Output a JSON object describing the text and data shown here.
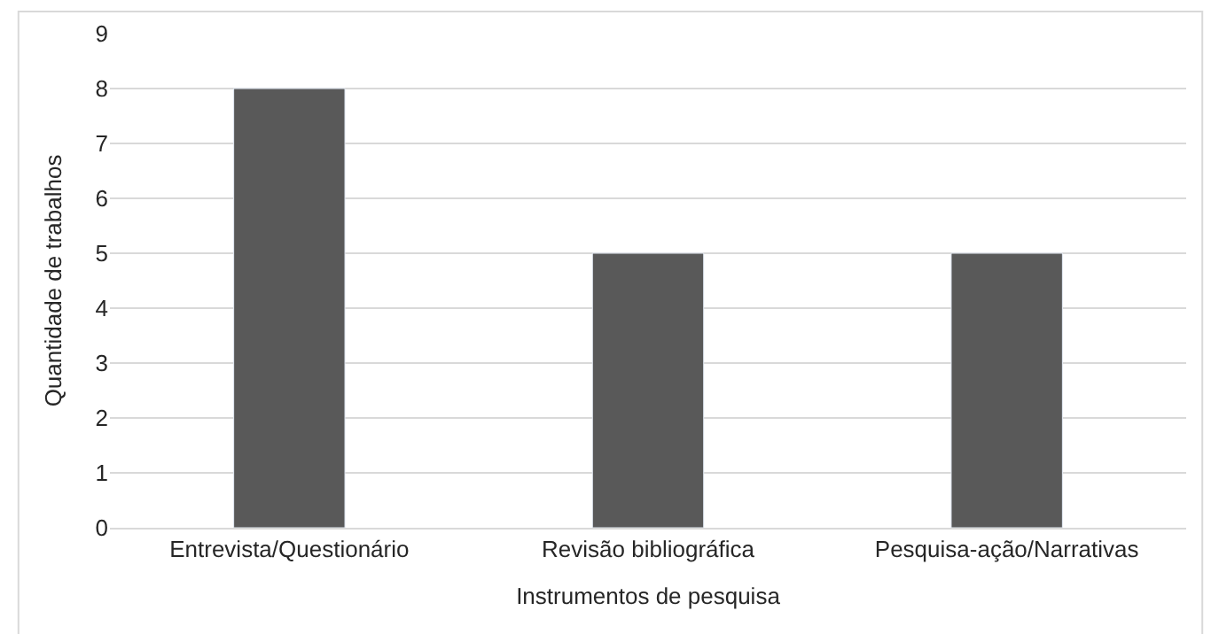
{
  "chart_data": {
    "type": "bar",
    "xlabel": "Instrumentos de pesquisa",
    "ylabel": "Quantidade de trabalhos",
    "categories": [
      "Entrevista/Questionário",
      "Revisão bibliográfica",
      "Pesquisa-ação/Narrativas"
    ],
    "values": [
      8,
      5,
      5
    ],
    "color": "#595959",
    "ylim": [
      0,
      9
    ],
    "yticks": [
      0,
      1,
      2,
      3,
      4,
      5,
      6,
      7,
      8,
      9
    ],
    "grid": "y",
    "legend": false
  }
}
